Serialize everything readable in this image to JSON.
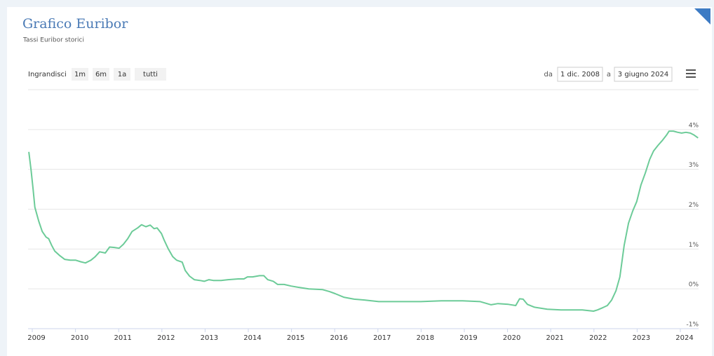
{
  "chart_data": {
    "type": "line",
    "title": "Grafico Euribor",
    "subtitle": "Tassi Euribor storici",
    "x": [
      2008.92,
      2008.97,
      2009.02,
      2009.06,
      2009.15,
      2009.23,
      2009.32,
      2009.38,
      2009.45,
      2009.52,
      2009.63,
      2009.75,
      2009.88,
      2010.0,
      2010.12,
      2010.23,
      2010.36,
      2010.46,
      2010.56,
      2010.69,
      2010.79,
      2010.9,
      2011.01,
      2011.11,
      2011.21,
      2011.31,
      2011.44,
      2011.53,
      2011.63,
      2011.73,
      2011.82,
      2011.89,
      2011.99,
      2012.05,
      2012.15,
      2012.25,
      2012.34,
      2012.47,
      2012.54,
      2012.64,
      2012.75,
      2012.88,
      2012.98,
      2013.09,
      2013.19,
      2013.37,
      2013.53,
      2013.77,
      2013.9,
      2013.98,
      2014.1,
      2014.26,
      2014.36,
      2014.45,
      2014.58,
      2014.68,
      2014.83,
      2014.99,
      2015.15,
      2015.4,
      2015.72,
      2015.88,
      2016.01,
      2016.21,
      2016.45,
      2016.69,
      2017.02,
      2017.5,
      2017.99,
      2018.47,
      2018.96,
      2019.37,
      2019.62,
      2019.78,
      2020.02,
      2020.19,
      2020.28,
      2020.36,
      2020.46,
      2020.62,
      2020.92,
      2021.24,
      2021.73,
      2021.99,
      2022.08,
      2022.21,
      2022.31,
      2022.41,
      2022.51,
      2022.6,
      2022.7,
      2022.8,
      2022.9,
      2022.99,
      2023.09,
      2023.19,
      2023.29,
      2023.38,
      2023.48,
      2023.58,
      2023.68,
      2023.74,
      2023.84,
      2023.94,
      2024.03,
      2024.13,
      2024.23,
      2024.32,
      2024.41
    ],
    "series": [
      {
        "name": "Euribor",
        "color": "#6ccb98",
        "values": [
          3.44,
          3.0,
          2.5,
          2.05,
          1.7,
          1.44,
          1.3,
          1.26,
          1.09,
          0.95,
          0.84,
          0.74,
          0.72,
          0.72,
          0.68,
          0.65,
          0.72,
          0.81,
          0.93,
          0.9,
          1.05,
          1.04,
          1.02,
          1.12,
          1.26,
          1.44,
          1.53,
          1.61,
          1.56,
          1.6,
          1.51,
          1.53,
          1.39,
          1.23,
          1.0,
          0.81,
          0.72,
          0.67,
          0.46,
          0.32,
          0.23,
          0.21,
          0.19,
          0.23,
          0.21,
          0.21,
          0.23,
          0.25,
          0.25,
          0.3,
          0.3,
          0.33,
          0.33,
          0.23,
          0.19,
          0.11,
          0.11,
          0.07,
          0.04,
          0.0,
          -0.02,
          -0.07,
          -0.12,
          -0.21,
          -0.26,
          -0.28,
          -0.32,
          -0.32,
          -0.32,
          -0.3,
          -0.3,
          -0.32,
          -0.4,
          -0.37,
          -0.39,
          -0.42,
          -0.25,
          -0.26,
          -0.39,
          -0.46,
          -0.51,
          -0.53,
          -0.53,
          -0.56,
          -0.53,
          -0.47,
          -0.42,
          -0.28,
          -0.05,
          0.3,
          1.09,
          1.65,
          1.96,
          2.19,
          2.61,
          2.91,
          3.25,
          3.46,
          3.6,
          3.72,
          3.86,
          3.96,
          3.96,
          3.93,
          3.91,
          3.93,
          3.91,
          3.86,
          3.79
        ]
      }
    ],
    "xlim": [
      2008.92,
      2024.42
    ],
    "xticks": [
      2009,
      2010,
      2011,
      2012,
      2013,
      2014,
      2015,
      2016,
      2017,
      2018,
      2019,
      2020,
      2021,
      2022,
      2023,
      2024
    ],
    "ylim": [
      -1,
      5
    ],
    "yticks": [
      {
        "value": -1,
        "label": "-1%"
      },
      {
        "value": 0,
        "label": "0%"
      },
      {
        "value": 1,
        "label": "1%"
      },
      {
        "value": 2,
        "label": "2%"
      },
      {
        "value": 3,
        "label": "3%"
      },
      {
        "value": 4,
        "label": "4%"
      }
    ],
    "grid": true
  },
  "zoom": {
    "label": "Ingrandisci",
    "buttons": [
      "1m",
      "6m",
      "1a",
      "tutti"
    ]
  },
  "date_range": {
    "from_label": "da",
    "from": "1 dic. 2008",
    "to_label": "a",
    "to": "3 giugno 2024"
  }
}
